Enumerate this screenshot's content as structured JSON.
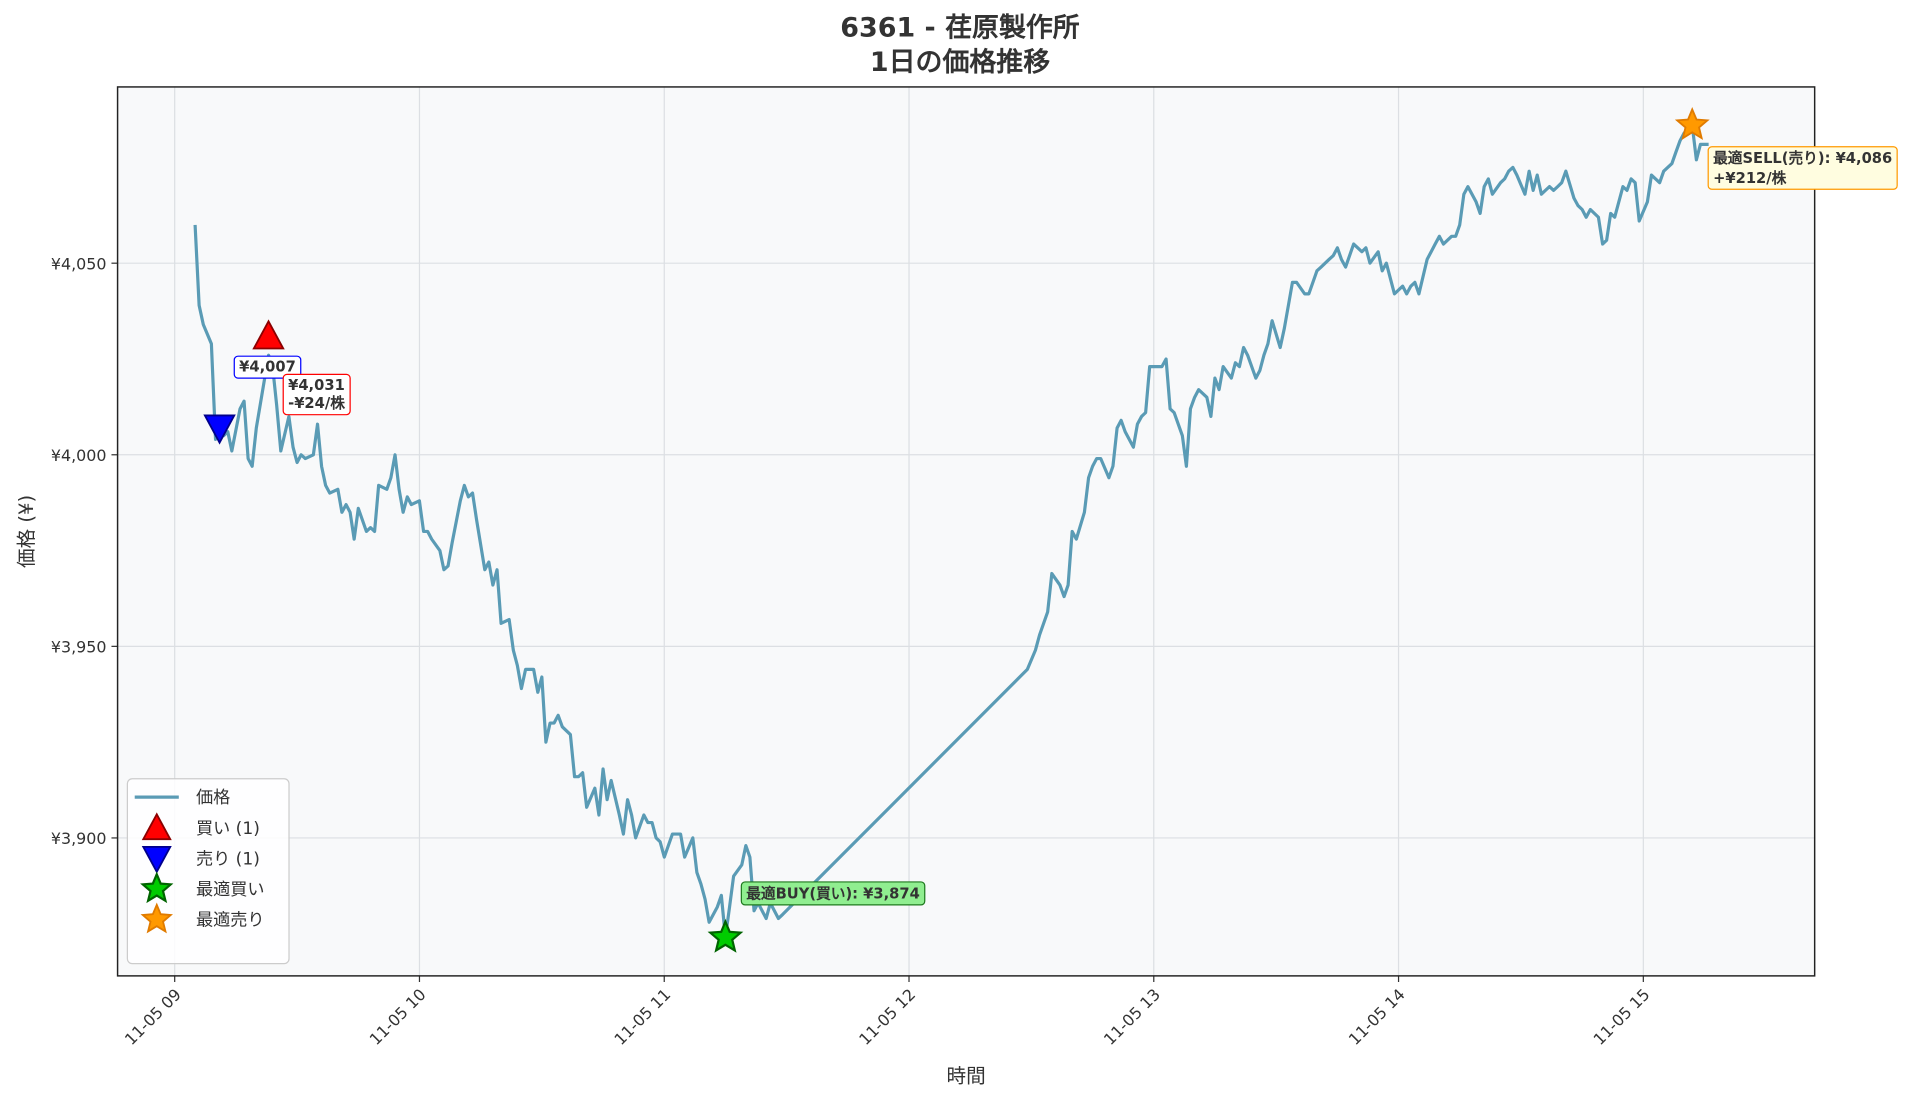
{
  "chart_data": {
    "type": "line",
    "title": "6361 - 荏原製作所",
    "subtitle": "1日の価格推移",
    "xlabel": "時間",
    "ylabel": "価格 (¥)",
    "grid": true,
    "legend": "lower left",
    "xlim": [
      "11-05 08:46",
      "11-05 15:42"
    ],
    "xticks": [
      {
        "value": "11-05 09:00",
        "label": "11-05 09"
      },
      {
        "value": "11-05 10:00",
        "label": "11-05 10"
      },
      {
        "value": "11-05 11:00",
        "label": "11-05 11"
      },
      {
        "value": "11-05 12:00",
        "label": "11-05 12"
      },
      {
        "value": "11-05 13:00",
        "label": "11-05 13"
      },
      {
        "value": "11-05 14:00",
        "label": "11-05 14"
      },
      {
        "value": "11-05 15:00",
        "label": "11-05 15"
      }
    ],
    "ylim": [
      3864,
      4096
    ],
    "yticks": [
      {
        "value": 3900,
        "label": "¥3,900"
      },
      {
        "value": 3950,
        "label": "¥3,950"
      },
      {
        "value": 4000,
        "label": "¥4,000"
      },
      {
        "value": 4050,
        "label": "¥4,050"
      }
    ],
    "x": [
      "11-05 09:05",
      "11-05 09:06",
      "11-05 09:07",
      "11-05 09:09",
      "11-05 09:10",
      "11-05 09:11",
      "11-05 09:12",
      "11-05 09:13",
      "11-05 09:14",
      "11-05 09:16",
      "11-05 09:17",
      "11-05 09:18",
      "11-05 09:19",
      "11-05 09:20",
      "11-05 09:23",
      "11-05 09:24",
      "11-05 09:25",
      "11-05 09:26",
      "11-05 09:28",
      "11-05 09:29",
      "11-05 09:30",
      "11-05 09:31",
      "11-05 09:32",
      "11-05 09:34",
      "11-05 09:35",
      "11-05 09:36",
      "11-05 09:37",
      "11-05 09:38",
      "11-05 09:40",
      "11-05 09:41",
      "11-05 09:42",
      "11-05 09:43",
      "11-05 09:44",
      "11-05 09:45",
      "11-05 09:47",
      "11-05 09:48",
      "11-05 09:49",
      "11-05 09:50",
      "11-05 09:52",
      "11-05 09:53",
      "11-05 09:54",
      "11-05 09:55",
      "11-05 09:56",
      "11-05 09:57",
      "11-05 09:58",
      "11-05 10:00",
      "11-05 10:01",
      "11-05 10:02",
      "11-05 10:03",
      "11-05 10:05",
      "11-05 10:06",
      "11-05 10:07",
      "11-05 10:08",
      "11-05 10:10",
      "11-05 10:11",
      "11-05 10:12",
      "11-05 10:13",
      "11-05 10:14",
      "11-05 10:16",
      "11-05 10:17",
      "11-05 10:18",
      "11-05 10:19",
      "11-05 10:20",
      "11-05 10:22",
      "11-05 10:23",
      "11-05 10:24",
      "11-05 10:25",
      "11-05 10:26",
      "11-05 10:28",
      "11-05 10:29",
      "11-05 10:30",
      "11-05 10:31",
      "11-05 10:32",
      "11-05 10:33",
      "11-05 10:34",
      "11-05 10:35",
      "11-05 10:37",
      "11-05 10:38",
      "11-05 10:39",
      "11-05 10:40",
      "11-05 10:41",
      "11-05 10:43",
      "11-05 10:44",
      "11-05 10:45",
      "11-05 10:46",
      "11-05 10:47",
      "11-05 10:49",
      "11-05 10:50",
      "11-05 10:51",
      "11-05 10:52",
      "11-05 10:53",
      "11-05 10:55",
      "11-05 10:56",
      "11-05 10:57",
      "11-05 10:58",
      "11-05 10:59",
      "11-05 11:00",
      "11-05 11:02",
      "11-05 11:03",
      "11-05 11:04",
      "11-05 11:05",
      "11-05 11:07",
      "11-05 11:08",
      "11-05 11:09",
      "11-05 11:10",
      "11-05 11:11",
      "11-05 11:13",
      "11-05 11:14",
      "11-05 11:15",
      "11-05 11:16",
      "11-05 11:17",
      "11-05 11:19",
      "11-05 11:20",
      "11-05 11:21",
      "11-05 11:22",
      "11-05 11:23",
      "11-05 11:25",
      "11-05 11:26",
      "11-05 11:27",
      "11-05 11:28",
      "11-05 11:29",
      "11-05 12:29",
      "11-05 12:31",
      "11-05 12:32",
      "11-05 12:34",
      "11-05 12:35",
      "11-05 12:37",
      "11-05 12:38",
      "11-05 12:39",
      "11-05 12:40",
      "11-05 12:41",
      "11-05 12:43",
      "11-05 12:44",
      "11-05 12:45",
      "11-05 12:46",
      "11-05 12:47",
      "11-05 12:49",
      "11-05 12:50",
      "11-05 12:51",
      "11-05 12:52",
      "11-05 12:53",
      "11-05 12:55",
      "11-05 12:56",
      "11-05 12:57",
      "11-05 12:58",
      "11-05 12:59",
      "11-05 13:01",
      "11-05 13:02",
      "11-05 13:03",
      "11-05 13:04",
      "11-05 13:05",
      "11-05 13:07",
      "11-05 13:08",
      "11-05 13:09",
      "11-05 13:10",
      "11-05 13:11",
      "11-05 13:13",
      "11-05 13:14",
      "11-05 13:15",
      "11-05 13:16",
      "11-05 13:17",
      "11-05 13:19",
      "11-05 13:20",
      "11-05 13:21",
      "11-05 13:22",
      "11-05 13:23",
      "11-05 13:25",
      "11-05 13:26",
      "11-05 13:27",
      "11-05 13:28",
      "11-05 13:29",
      "11-05 13:31",
      "11-05 13:32",
      "11-05 13:33",
      "11-05 13:34",
      "11-05 13:35",
      "11-05 13:37",
      "11-05 13:38",
      "11-05 13:39",
      "11-05 13:40",
      "11-05 13:41",
      "11-05 13:43",
      "11-05 13:44",
      "11-05 13:45",
      "11-05 13:46",
      "11-05 13:47",
      "11-05 13:49",
      "11-05 13:50",
      "11-05 13:51",
      "11-05 13:52",
      "11-05 13:53",
      "11-05 13:55",
      "11-05 13:56",
      "11-05 13:57",
      "11-05 13:58",
      "11-05 13:59",
      "11-05 14:01",
      "11-05 14:02",
      "11-05 14:03",
      "11-05 14:04",
      "11-05 14:05",
      "11-05 14:07",
      "11-05 14:08",
      "11-05 14:09",
      "11-05 14:10",
      "11-05 14:11",
      "11-05 14:13",
      "11-05 14:14",
      "11-05 14:15",
      "11-05 14:16",
      "11-05 14:17",
      "11-05 14:19",
      "11-05 14:20",
      "11-05 14:21",
      "11-05 14:22",
      "11-05 14:23",
      "11-05 14:25",
      "11-05 14:26",
      "11-05 14:27",
      "11-05 14:28",
      "11-05 14:29",
      "11-05 14:31",
      "11-05 14:32",
      "11-05 14:33",
      "11-05 14:34",
      "11-05 14:35",
      "11-05 14:37",
      "11-05 14:38",
      "11-05 14:39",
      "11-05 14:40",
      "11-05 14:41",
      "11-05 14:43",
      "11-05 14:44",
      "11-05 14:45",
      "11-05 14:46",
      "11-05 14:47",
      "11-05 14:49",
      "11-05 14:50",
      "11-05 14:51",
      "11-05 14:52",
      "11-05 14:53",
      "11-05 14:55",
      "11-05 14:56",
      "11-05 14:57",
      "11-05 14:58",
      "11-05 14:59",
      "11-05 15:01",
      "11-05 15:02",
      "11-05 15:03",
      "11-05 15:04",
      "11-05 15:05",
      "11-05 15:07",
      "11-05 15:08",
      "11-05 15:09",
      "11-05 15:10",
      "11-05 15:11",
      "11-05 15:12",
      "11-05 15:13",
      "11-05 15:14",
      "11-05 15:16"
    ],
    "series": [
      {
        "name": "価格",
        "color": "#5a9bb5",
        "values": [
          4060,
          4039,
          4034,
          4029,
          4004,
          4009,
          4005,
          4006,
          4001,
          4012,
          4014,
          3999,
          3997,
          4007,
          4026,
          4023,
          4013,
          4001,
          4010,
          4002,
          3998,
          4000,
          3999,
          4000,
          4008,
          3997,
          3992,
          3990,
          3991,
          3985,
          3987,
          3985,
          3978,
          3986,
          3980,
          3981,
          3980,
          3992,
          3991,
          3994,
          4000,
          3991,
          3985,
          3989,
          3987,
          3988,
          3980,
          3980,
          3978,
          3975,
          3970,
          3971,
          3977,
          3988,
          3992,
          3989,
          3990,
          3983,
          3970,
          3972,
          3966,
          3970,
          3956,
          3957,
          3949,
          3945,
          3939,
          3944,
          3944,
          3938,
          3942,
          3925,
          3930,
          3930,
          3932,
          3929,
          3927,
          3916,
          3916,
          3917,
          3908,
          3913,
          3906,
          3918,
          3910,
          3915,
          3906,
          3901,
          3910,
          3906,
          3900,
          3906,
          3904,
          3904,
          3900,
          3899,
          3895,
          3901,
          3901,
          3901,
          3895,
          3900,
          3891,
          3888,
          3884,
          3878,
          3882,
          3885,
          3874,
          3882,
          3890,
          3893,
          3898,
          3895,
          3881,
          3883,
          3879,
          3883,
          3881,
          3879,
          3880,
          3944,
          3949,
          3953,
          3959,
          3969,
          3966,
          3963,
          3966,
          3980,
          3978,
          3985,
          3994,
          3997,
          3999,
          3999,
          3994,
          3997,
          4007,
          4009,
          4006,
          4002,
          4008,
          4010,
          4011,
          4023,
          4023,
          4023,
          4025,
          4012,
          4011,
          4005,
          3997,
          4012,
          4015,
          4017,
          4015,
          4010,
          4020,
          4017,
          4023,
          4020,
          4024,
          4023,
          4028,
          4026,
          4020,
          4022,
          4026,
          4029,
          4035,
          4028,
          4033,
          4039,
          4045,
          4045,
          4042,
          4042,
          4045,
          4048,
          4049,
          4051,
          4052,
          4054,
          4051,
          4049,
          4055,
          4054,
          4053,
          4054,
          4050,
          4053,
          4048,
          4050,
          4046,
          4042,
          4044,
          4042,
          4044,
          4045,
          4042,
          4051,
          4053,
          4055,
          4057,
          4055,
          4057,
          4057,
          4060,
          4068,
          4070,
          4066,
          4063,
          4070,
          4072,
          4068,
          4071,
          4072,
          4074,
          4075,
          4073,
          4068,
          4074,
          4069,
          4073,
          4068,
          4070,
          4069,
          4070,
          4071,
          4074,
          4067,
          4065,
          4064,
          4062,
          4064,
          4062,
          4055,
          4056,
          4063,
          4062,
          4070,
          4069,
          4072,
          4071,
          4061,
          4066,
          4073,
          4072,
          4071,
          4074,
          4076,
          4079,
          4082,
          4084,
          4085,
          4086,
          4077,
          4081,
          4081
        ]
      }
    ],
    "buy": {
      "name": "買い (1)",
      "color": "#ff0000",
      "x": [
        "11-05 09:23"
      ],
      "values": [
        4031
      ],
      "value_labels": [
        "¥4,031"
      ],
      "notes": [
        "-¥24/株"
      ]
    },
    "sell": {
      "name": "売り (1)",
      "color": "#0000ff",
      "x": [
        "11-05 09:11"
      ],
      "values": [
        4007
      ],
      "value_labels": [
        "¥4,007"
      ]
    },
    "best_buy": {
      "name": "最適買い",
      "color": "#00cc00",
      "x": "11-05 11:15",
      "value": 3874,
      "label": "最適BUY(買い): ¥3,874"
    },
    "best_sell": {
      "name": "最適売り",
      "color": "#ff9900",
      "x": "11-05 15:12",
      "value": 4086,
      "label": "最適SELL(売り): ¥4,086",
      "note": "+¥212/株"
    }
  }
}
